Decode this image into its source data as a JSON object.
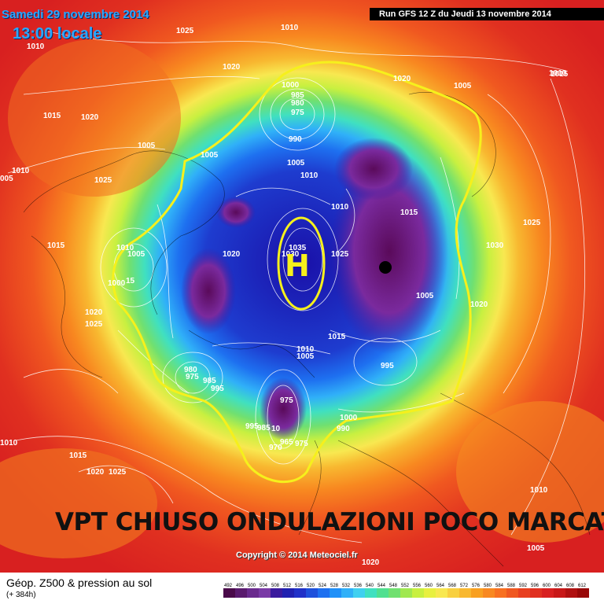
{
  "header": {
    "date": "Samedi 29 novembre 2014",
    "local_time": "13:00 locale",
    "run": "Run GFS 12 Z du Jeudi 13 novembre 2014"
  },
  "annotation": {
    "headline": "VPT CHIUSO ONDULAZIONI POCO MARCATE",
    "high_marker": "H"
  },
  "copyright": "Copyright © 2014 Meteociel.fr",
  "legend": {
    "title": "Géop. Z500 & pression au sol",
    "subtitle": "(+ 384h)",
    "values": [
      "492",
      "496",
      "500",
      "504",
      "508",
      "512",
      "516",
      "520",
      "524",
      "528",
      "532",
      "536",
      "540",
      "544",
      "548",
      "552",
      "556",
      "560",
      "564",
      "568",
      "572",
      "576",
      "580",
      "584",
      "588",
      "592",
      "596",
      "600",
      "604",
      "608",
      "612"
    ],
    "colors": [
      "#4a0a4a",
      "#5a1a6e",
      "#6a2a8e",
      "#7a3aa6",
      "#3a1a9e",
      "#2020b0",
      "#2030c8",
      "#1e50dc",
      "#1e70f0",
      "#2090f8",
      "#30b0f8",
      "#40d0f0",
      "#40e0c0",
      "#50e090",
      "#70e070",
      "#a0e850",
      "#c8f040",
      "#e8f040",
      "#f8e850",
      "#f8d040",
      "#f8b830",
      "#f8a020",
      "#f88820",
      "#f87020",
      "#f05820",
      "#e84020",
      "#e03020",
      "#d82020",
      "#c81818",
      "#b01010",
      "#980808"
    ]
  },
  "pressure_labels": [
    {
      "text": "1010",
      "tone": "w"
    },
    {
      "text": "1025",
      "tone": "w"
    },
    {
      "text": "1010",
      "tone": "w"
    },
    {
      "text": "1010",
      "tone": "w"
    },
    {
      "text": "1020",
      "tone": "w"
    },
    {
      "text": "1015",
      "tone": "w"
    },
    {
      "text": "1020",
      "tone": "w"
    },
    {
      "text": "1005",
      "tone": "w"
    },
    {
      "text": "1010",
      "tone": "w"
    },
    {
      "text": "005",
      "tone": "w"
    },
    {
      "text": "1025",
      "tone": "w"
    },
    {
      "text": "1005",
      "tone": "w"
    },
    {
      "text": "1015",
      "tone": "w"
    },
    {
      "text": "1010",
      "tone": "w"
    },
    {
      "text": "1005",
      "tone": "w"
    },
    {
      "text": "1000",
      "tone": "w"
    },
    {
      "text": "15",
      "tone": "w"
    },
    {
      "text": "1020",
      "tone": "w"
    },
    {
      "text": "1025",
      "tone": "w"
    },
    {
      "text": "1020",
      "tone": "w"
    },
    {
      "text": "1000",
      "tone": "w"
    },
    {
      "text": "985",
      "tone": "w"
    },
    {
      "text": "980",
      "tone": "w"
    },
    {
      "text": "975",
      "tone": "w"
    },
    {
      "text": "990",
      "tone": "w"
    },
    {
      "text": "1005",
      "tone": "w"
    },
    {
      "text": "1010",
      "tone": "w"
    },
    {
      "text": "1010",
      "tone": "w"
    },
    {
      "text": "1020",
      "tone": "w"
    },
    {
      "text": "1035",
      "tone": "w"
    },
    {
      "text": "1030",
      "tone": "w"
    },
    {
      "text": "1025",
      "tone": "w"
    },
    {
      "text": "1015",
      "tone": "w"
    },
    {
      "text": "1005",
      "tone": "w"
    },
    {
      "text": "1015",
      "tone": "w"
    },
    {
      "text": "1010",
      "tone": "w"
    },
    {
      "text": "1005",
      "tone": "w"
    },
    {
      "text": "995",
      "tone": "w"
    },
    {
      "text": "980",
      "tone": "w"
    },
    {
      "text": "975",
      "tone": "w"
    },
    {
      "text": "985",
      "tone": "w"
    },
    {
      "text": "995",
      "tone": "w"
    },
    {
      "text": "975",
      "tone": "w"
    },
    {
      "text": "995",
      "tone": "w"
    },
    {
      "text": "985",
      "tone": "w"
    },
    {
      "text": "10",
      "tone": "w"
    },
    {
      "text": "990",
      "tone": "w"
    },
    {
      "text": "1000",
      "tone": "w"
    },
    {
      "text": "965",
      "tone": "w"
    },
    {
      "text": "975",
      "tone": "w"
    },
    {
      "text": "970",
      "tone": "w"
    },
    {
      "text": "1020",
      "tone": "w"
    },
    {
      "text": "1005",
      "tone": "w"
    },
    {
      "text": "1015",
      "tone": "w"
    },
    {
      "text": "1025",
      "tone": "w"
    },
    {
      "text": "1030",
      "tone": "w"
    },
    {
      "text": "1020",
      "tone": "w"
    },
    {
      "text": "1010",
      "tone": "w"
    },
    {
      "text": "1015",
      "tone": "w"
    },
    {
      "text": "1020",
      "tone": "w"
    },
    {
      "text": "1025",
      "tone": "w"
    },
    {
      "text": "1010",
      "tone": "w"
    },
    {
      "text": "1005",
      "tone": "w"
    }
  ]
}
